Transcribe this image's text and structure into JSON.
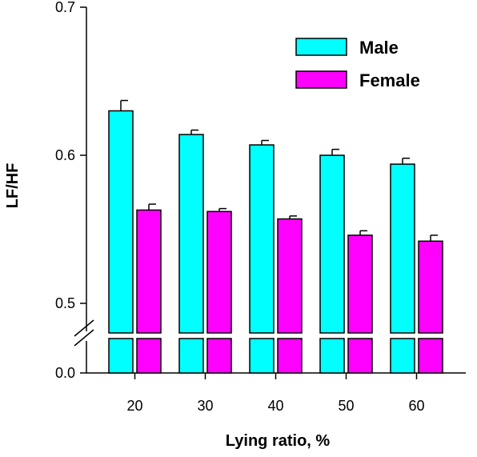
{
  "chart_data": {
    "type": "bar",
    "title": "",
    "xlabel": "Lying ratio, %",
    "ylabel": "LF/HF",
    "categories": [
      "20",
      "30",
      "40",
      "50",
      "60"
    ],
    "series": [
      {
        "name": "Male",
        "color": "#00FFFF",
        "values": [
          0.63,
          0.614,
          0.607,
          0.6,
          0.594
        ],
        "errors": [
          0.007,
          0.003,
          0.003,
          0.004,
          0.004
        ]
      },
      {
        "name": "Female",
        "color": "#FF00FF",
        "values": [
          0.563,
          0.562,
          0.557,
          0.546,
          0.542
        ],
        "errors": [
          0.004,
          0.002,
          0.002,
          0.003,
          0.004
        ]
      }
    ],
    "ylim": [
      0.0,
      0.7
    ],
    "y_axis_break": [
      0.0,
      0.48
    ],
    "yticks": [
      "0.0",
      "0.5",
      "0.6",
      "0.7"
    ],
    "legend_position": "top-right",
    "grid": false
  }
}
